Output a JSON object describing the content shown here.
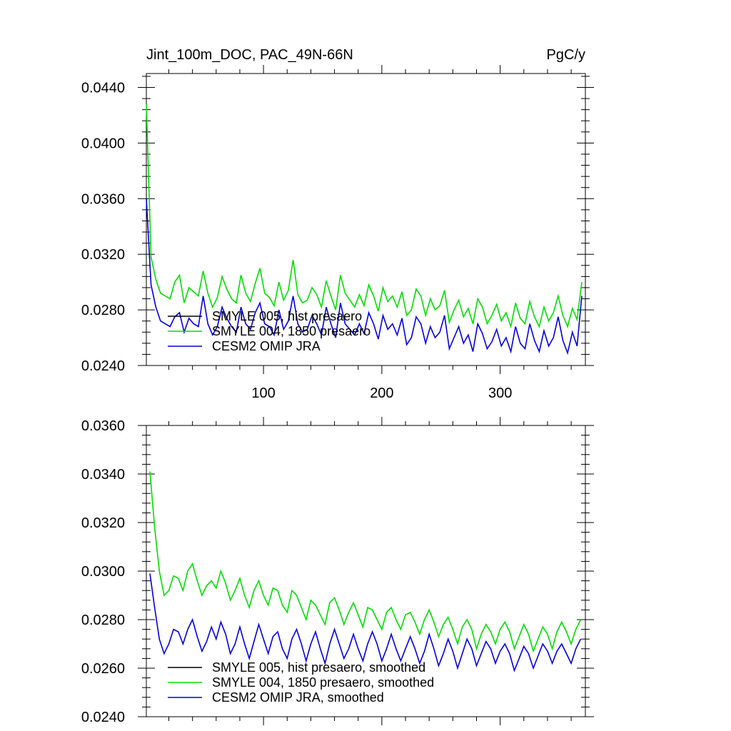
{
  "header": {
    "title": "Jint_100m_DOC, PAC_49N-66N",
    "units": "PgC/y"
  },
  "colors": {
    "smyle_005": "#000000",
    "smyle_004": "#00dd00",
    "omip": "#0000dd",
    "axis": "#000000",
    "background": "#ffffff"
  },
  "chart_data": [
    {
      "type": "line",
      "title": "Jint_100m_DOC, PAC_49N-66N",
      "units_label": "PgC/y",
      "x_range": [
        1,
        372
      ],
      "ylim": [
        0.024,
        0.045
      ],
      "x_ticks": [
        100,
        200,
        300
      ],
      "x_tick_labels": [
        "100",
        "200",
        "300"
      ],
      "y_ticks": [
        0.024,
        0.028,
        0.032,
        0.036,
        0.04,
        0.044
      ],
      "y_tick_labels": [
        "0.0240",
        "0.0280",
        "0.0320",
        "0.0360",
        "0.0400",
        "0.0440"
      ],
      "grid": false,
      "legend_position": "bottom-left",
      "series": [
        {
          "name": "SMYLE 005, hist presaero",
          "color": "#000000",
          "values": []
        },
        {
          "name": "SMYLE 004, 1850 presaero",
          "color": "#00dd00",
          "x_start": 1,
          "x_step": 4,
          "values": [
            0.0428,
            0.0318,
            0.0302,
            0.0292,
            0.029,
            0.0288,
            0.03,
            0.0305,
            0.0285,
            0.0296,
            0.0293,
            0.029,
            0.0308,
            0.0292,
            0.0282,
            0.0289,
            0.0304,
            0.0295,
            0.0288,
            0.0285,
            0.0305,
            0.0292,
            0.0286,
            0.0299,
            0.031,
            0.0292,
            0.0289,
            0.0283,
            0.03,
            0.0287,
            0.0294,
            0.0316,
            0.0291,
            0.0285,
            0.0287,
            0.0296,
            0.0291,
            0.0282,
            0.0301,
            0.029,
            0.028,
            0.0305,
            0.0292,
            0.0287,
            0.0282,
            0.0291,
            0.0283,
            0.0298,
            0.029,
            0.0279,
            0.0296,
            0.0286,
            0.029,
            0.0282,
            0.0293,
            0.0276,
            0.028,
            0.0295,
            0.029,
            0.0276,
            0.0288,
            0.028,
            0.0283,
            0.0294,
            0.0271,
            0.028,
            0.0287,
            0.0275,
            0.0281,
            0.027,
            0.0288,
            0.0282,
            0.027,
            0.0276,
            0.0284,
            0.0272,
            0.0278,
            0.0268,
            0.0285,
            0.0274,
            0.027,
            0.0286,
            0.0275,
            0.0268,
            0.0282,
            0.0272,
            0.0278,
            0.029,
            0.0276,
            0.0268,
            0.0281,
            0.0273,
            0.03
          ]
        },
        {
          "name": "CESM2 OMIP JRA",
          "color": "#0000dd",
          "x_start": 1,
          "x_step": 4,
          "values": [
            0.036,
            0.0298,
            0.0282,
            0.0272,
            0.027,
            0.0268,
            0.0275,
            0.0278,
            0.0264,
            0.0274,
            0.027,
            0.0268,
            0.029,
            0.027,
            0.0262,
            0.0268,
            0.0282,
            0.0274,
            0.0268,
            0.0264,
            0.0282,
            0.027,
            0.0266,
            0.0278,
            0.0285,
            0.027,
            0.0268,
            0.0262,
            0.028,
            0.0266,
            0.0272,
            0.029,
            0.027,
            0.0264,
            0.0266,
            0.0276,
            0.027,
            0.0262,
            0.0282,
            0.027,
            0.026,
            0.0285,
            0.027,
            0.0266,
            0.0262,
            0.027,
            0.0263,
            0.0278,
            0.027,
            0.0259,
            0.0276,
            0.0266,
            0.027,
            0.0262,
            0.0274,
            0.0255,
            0.026,
            0.0275,
            0.027,
            0.0256,
            0.0268,
            0.026,
            0.0264,
            0.0276,
            0.0252,
            0.026,
            0.0268,
            0.0256,
            0.0262,
            0.025,
            0.027,
            0.0263,
            0.0252,
            0.0257,
            0.0266,
            0.0254,
            0.026,
            0.025,
            0.0268,
            0.0256,
            0.0252,
            0.027,
            0.0258,
            0.025,
            0.0265,
            0.0254,
            0.026,
            0.0275,
            0.0258,
            0.0249,
            0.0264,
            0.0254,
            0.029
          ]
        }
      ]
    },
    {
      "type": "line",
      "x_range": [
        1,
        372
      ],
      "ylim": [
        0.024,
        0.036
      ],
      "y_ticks": [
        0.024,
        0.026,
        0.028,
        0.03,
        0.032,
        0.034,
        0.036
      ],
      "y_tick_labels": [
        "0.0240",
        "0.0260",
        "0.0280",
        "0.0300",
        "0.0320",
        "0.0340",
        "0.0360"
      ],
      "grid": false,
      "legend_position": "bottom-left",
      "series": [
        {
          "name": "SMYLE 005, hist presaero, smoothed",
          "color": "#000000",
          "values": []
        },
        {
          "name": "SMYLE 004, 1850 presaero, smoothed",
          "color": "#00dd00",
          "x_start": 4,
          "x_step": 4,
          "values": [
            0.0341,
            0.0318,
            0.03,
            0.029,
            0.0292,
            0.0298,
            0.0297,
            0.0292,
            0.03,
            0.0303,
            0.0296,
            0.029,
            0.0294,
            0.0296,
            0.0293,
            0.03,
            0.0295,
            0.0288,
            0.0292,
            0.0297,
            0.029,
            0.0285,
            0.0292,
            0.0296,
            0.029,
            0.0286,
            0.0293,
            0.0292,
            0.0286,
            0.0283,
            0.0292,
            0.029,
            0.0285,
            0.028,
            0.0288,
            0.0286,
            0.0282,
            0.0278,
            0.0287,
            0.0289,
            0.0284,
            0.0278,
            0.0283,
            0.0287,
            0.0282,
            0.0277,
            0.0285,
            0.0284,
            0.028,
            0.0276,
            0.0283,
            0.0285,
            0.028,
            0.0276,
            0.0282,
            0.0283,
            0.0279,
            0.0274,
            0.028,
            0.0284,
            0.0279,
            0.0273,
            0.0278,
            0.0281,
            0.0276,
            0.027,
            0.0277,
            0.028,
            0.0276,
            0.0268,
            0.0274,
            0.0278,
            0.0275,
            0.027,
            0.0276,
            0.0279,
            0.0275,
            0.0268,
            0.0273,
            0.0278,
            0.0274,
            0.0267,
            0.0272,
            0.0277,
            0.0274,
            0.0268,
            0.0275,
            0.0279,
            0.0275,
            0.027,
            0.0276,
            0.028
          ]
        },
        {
          "name": "CESM2 OMIP JRA, smoothed",
          "color": "#0000dd",
          "x_start": 4,
          "x_step": 4,
          "values": [
            0.0299,
            0.0285,
            0.0272,
            0.0266,
            0.027,
            0.0276,
            0.0275,
            0.027,
            0.0276,
            0.028,
            0.0273,
            0.0267,
            0.0271,
            0.0277,
            0.0272,
            0.0279,
            0.0274,
            0.0266,
            0.027,
            0.0277,
            0.027,
            0.0264,
            0.0271,
            0.0278,
            0.0272,
            0.0266,
            0.0273,
            0.0275,
            0.0268,
            0.0264,
            0.0272,
            0.0276,
            0.027,
            0.0263,
            0.027,
            0.0275,
            0.0268,
            0.0262,
            0.027,
            0.0276,
            0.027,
            0.0264,
            0.0268,
            0.0274,
            0.0268,
            0.0263,
            0.027,
            0.0275,
            0.027,
            0.0263,
            0.0268,
            0.0274,
            0.0268,
            0.0263,
            0.0268,
            0.0273,
            0.0268,
            0.0262,
            0.0267,
            0.0274,
            0.0268,
            0.0261,
            0.0266,
            0.0272,
            0.0267,
            0.026,
            0.0266,
            0.0272,
            0.0268,
            0.0261,
            0.0266,
            0.0271,
            0.0268,
            0.0262,
            0.0267,
            0.027,
            0.0266,
            0.0259,
            0.0264,
            0.0269,
            0.0266,
            0.026,
            0.0265,
            0.027,
            0.0267,
            0.0262,
            0.0267,
            0.027,
            0.0266,
            0.0262,
            0.0268,
            0.0272
          ]
        }
      ]
    }
  ]
}
